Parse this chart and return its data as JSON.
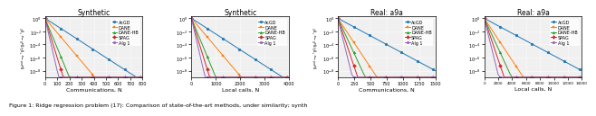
{
  "panels": [
    {
      "title": "Synthetic",
      "xlabel": "Communications, N",
      "xmax": 800,
      "xticks": [
        0,
        100,
        200,
        300,
        400,
        500,
        600,
        700,
        800
      ]
    },
    {
      "title": "Synthetic",
      "xlabel": "Local calls, N",
      "xmax": 4000,
      "xticks": [
        0,
        1000,
        2000,
        3000,
        4000
      ]
    },
    {
      "title": "Real: a9a",
      "xlabel": "Communications, N",
      "xmax": 1500,
      "xticks": [
        0,
        250,
        500,
        750,
        1000,
        1250,
        1500
      ]
    },
    {
      "title": "Real: a9a",
      "xlabel": "Local calls, N",
      "xmax": 14000,
      "xticks": [
        0,
        2000,
        4000,
        6000,
        8000,
        10000,
        12000,
        14000
      ]
    }
  ],
  "algorithms": [
    "AcGD",
    "DANE",
    "DANE-HB",
    "SPAG",
    "Alg 1"
  ],
  "colors": [
    "#1f77b4",
    "#ff7f0e",
    "#2ca02c",
    "#d62728",
    "#9467bd"
  ],
  "markers": [
    "o",
    "s",
    "^",
    "D",
    "o"
  ],
  "caption": "Figure 1: Ridge regression problem (17): Comparison of state-of-the-art methods, under similarity; synth",
  "rates_p1": [
    1.2,
    2.2,
    4.5,
    6.0,
    8.0
  ],
  "rates_p2": [
    1.2,
    2.2,
    4.5,
    6.0,
    8.0
  ],
  "rates_p3": [
    1.0,
    2.8,
    4.0,
    5.5,
    7.5
  ],
  "rates_p4": [
    1.0,
    2.8,
    4.0,
    5.5,
    7.5
  ],
  "bg_color": "#f0f0f0"
}
